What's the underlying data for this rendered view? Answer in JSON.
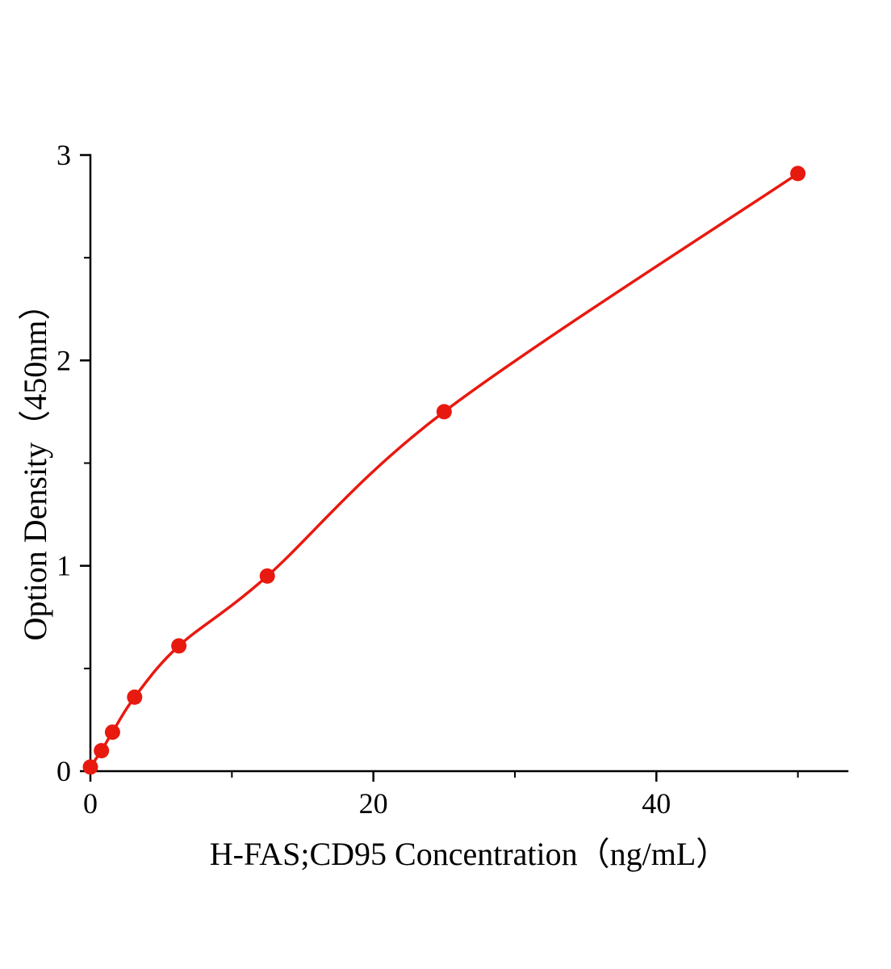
{
  "page": {
    "background": "#ffffff"
  },
  "chart_data": {
    "type": "scatter",
    "title": "",
    "xlabel": "H-FAS;CD95 Concentration（ng/mL）",
    "ylabel": "Option Density（450nm）",
    "x": [
      0,
      0.78,
      1.56,
      3.125,
      6.25,
      12.5,
      25,
      50
    ],
    "y": [
      0.02,
      0.1,
      0.19,
      0.36,
      0.61,
      0.95,
      1.75,
      2.91
    ],
    "curve_fit": "smooth concave-increasing curve through all points",
    "xlim": [
      0,
      53.5
    ],
    "ylim": [
      0,
      3
    ],
    "x_major_ticks": [
      0,
      20,
      40
    ],
    "x_minor_ticks": [
      10,
      30,
      50
    ],
    "y_major_ticks": [
      0,
      1,
      2,
      3
    ],
    "y_minor_ticks": [
      0.5,
      1.5,
      2.5
    ],
    "point_color": "#e8190f",
    "line_color": "#e8190f",
    "axis_color": "#000000",
    "grid": false,
    "legend": null
  }
}
